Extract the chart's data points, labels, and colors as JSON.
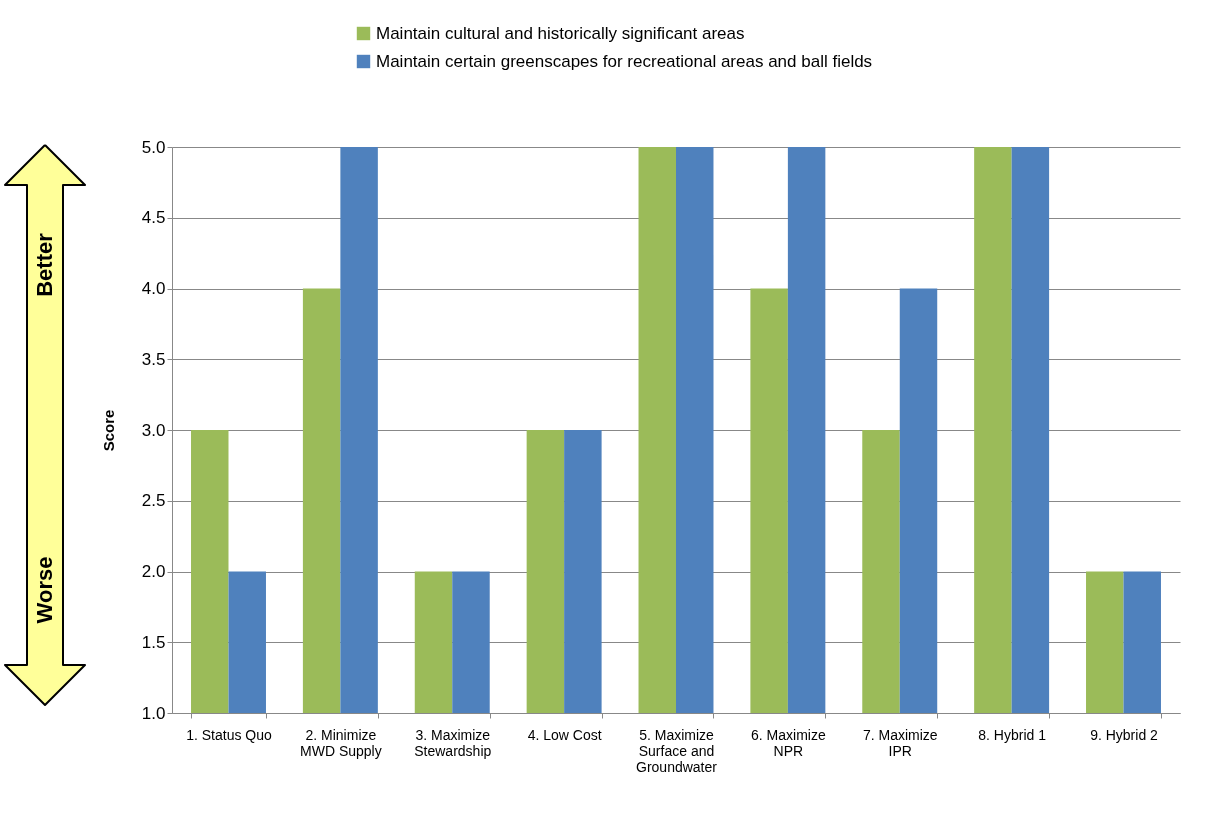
{
  "chart_data": {
    "type": "bar",
    "ylabel": "Score",
    "categories": [
      "1. Status Quo",
      "2. Minimize MWD Supply",
      "3. Maximize Stewardship",
      "4. Low Cost",
      "5. Maximize Surface and Groundwater",
      "6. Maximize NPR",
      "7. Maximize IPR",
      "8. Hybrid 1",
      "9. Hybrid 2"
    ],
    "series": [
      {
        "name": "Maintain cultural and historically significant areas",
        "color": "#9bbb59",
        "values": [
          3,
          4,
          2,
          3,
          5,
          4,
          3,
          5,
          2
        ]
      },
      {
        "name": "Maintain certain greenscapes for recreational areas and ball fields",
        "color": "#4f81bd",
        "values": [
          2,
          5,
          2,
          3,
          5,
          5,
          4,
          5,
          2
        ]
      }
    ],
    "ylim": [
      1,
      5
    ],
    "yticks": [
      {
        "value": 1,
        "label": "1.0"
      },
      {
        "value": 1.5,
        "label": "1.5"
      },
      {
        "value": 2,
        "label": "2.0"
      },
      {
        "value": 2.5,
        "label": "2.5"
      },
      {
        "value": 3,
        "label": "3.0"
      },
      {
        "value": 3.5,
        "label": "3.5"
      },
      {
        "value": 4,
        "label": "4.0"
      },
      {
        "value": 4.5,
        "label": "4.5"
      },
      {
        "value": 5,
        "label": "5.0"
      }
    ],
    "grid": "y",
    "legend": "top",
    "annotations": [
      "Better",
      "Worse"
    ]
  }
}
